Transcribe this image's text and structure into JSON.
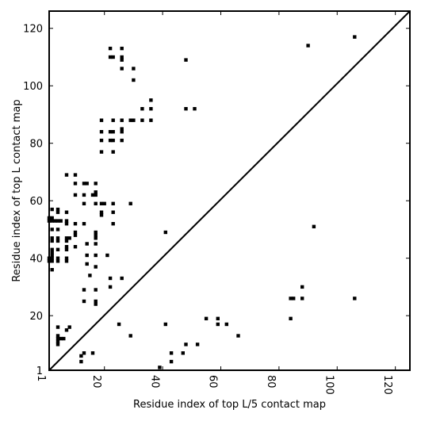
{
  "chart_data": {
    "type": "scatter",
    "title": "",
    "xlabel": "Residue index of top L/5 contact map",
    "ylabel": "Residue index of top L contact map",
    "xlim": [
      1,
      125
    ],
    "ylim": [
      1,
      126
    ],
    "xticks": [
      1,
      20,
      40,
      60,
      80,
      100,
      120
    ],
    "xtick_labels": [
      "1",
      "20",
      "40",
      "60",
      "80",
      "100",
      "120"
    ],
    "yticks": [
      1,
      20,
      40,
      60,
      80,
      100,
      120
    ],
    "ytick_labels": [
      "1",
      "20",
      "40",
      "60",
      "80",
      "100",
      "120"
    ],
    "grid": false,
    "diagonal_line": true,
    "upper_triangle_points": [
      [
        22,
        113
      ],
      [
        26,
        113
      ],
      [
        22,
        110
      ],
      [
        23,
        110
      ],
      [
        26,
        110
      ],
      [
        26,
        109
      ],
      [
        48,
        109
      ],
      [
        26,
        106
      ],
      [
        30,
        106
      ],
      [
        30,
        102
      ],
      [
        36,
        95
      ],
      [
        33,
        92
      ],
      [
        36,
        92
      ],
      [
        48,
        92
      ],
      [
        51,
        92
      ],
      [
        19,
        88
      ],
      [
        23,
        88
      ],
      [
        26,
        88
      ],
      [
        29,
        88
      ],
      [
        30,
        88
      ],
      [
        33,
        88
      ],
      [
        36,
        88
      ],
      [
        19,
        84
      ],
      [
        22,
        84
      ],
      [
        23,
        84
      ],
      [
        26,
        85
      ],
      [
        26,
        84
      ],
      [
        19,
        81
      ],
      [
        22,
        81
      ],
      [
        23,
        81
      ],
      [
        26,
        81
      ],
      [
        19,
        77
      ],
      [
        23,
        77
      ],
      [
        7,
        69
      ],
      [
        10,
        69
      ],
      [
        10,
        66
      ],
      [
        13,
        66
      ],
      [
        14,
        66
      ],
      [
        17,
        66
      ],
      [
        10,
        62
      ],
      [
        13,
        62
      ],
      [
        16,
        62
      ],
      [
        17,
        62
      ],
      [
        17,
        63
      ],
      [
        13,
        59
      ],
      [
        17,
        59
      ],
      [
        19,
        59
      ],
      [
        20,
        59
      ],
      [
        23,
        59
      ],
      [
        29,
        59
      ],
      [
        2,
        57
      ],
      [
        4,
        57
      ],
      [
        4,
        56
      ],
      [
        7,
        56
      ],
      [
        19,
        56
      ],
      [
        23,
        56
      ],
      [
        19,
        55
      ],
      [
        1,
        54
      ],
      [
        2,
        54
      ],
      [
        1,
        53
      ],
      [
        2,
        53
      ],
      [
        3,
        53
      ],
      [
        4,
        53
      ],
      [
        5,
        53
      ],
      [
        7,
        53
      ],
      [
        10,
        52
      ],
      [
        13,
        52
      ],
      [
        7,
        52
      ],
      [
        23,
        52
      ],
      [
        2,
        50
      ],
      [
        4,
        50
      ],
      [
        10,
        49
      ],
      [
        17,
        49
      ],
      [
        10,
        48
      ],
      [
        17,
        48
      ],
      [
        17,
        47
      ],
      [
        2,
        47
      ],
      [
        4,
        47
      ],
      [
        7,
        47
      ],
      [
        8,
        47
      ],
      [
        7,
        46
      ],
      [
        2,
        46
      ],
      [
        4,
        46
      ],
      [
        14,
        45
      ],
      [
        17,
        45
      ],
      [
        10,
        44
      ],
      [
        7,
        44
      ],
      [
        7,
        43
      ],
      [
        2,
        43
      ],
      [
        4,
        43
      ],
      [
        2,
        42
      ],
      [
        2,
        41
      ],
      [
        14,
        41
      ],
      [
        17,
        41
      ],
      [
        21,
        41
      ],
      [
        1,
        40
      ],
      [
        2,
        40
      ],
      [
        4,
        40
      ],
      [
        7,
        40
      ],
      [
        1,
        39
      ],
      [
        2,
        39
      ],
      [
        4,
        39
      ],
      [
        7,
        39
      ],
      [
        14,
        38
      ],
      [
        17,
        37
      ],
      [
        2,
        36
      ],
      [
        15,
        34
      ],
      [
        22,
        33
      ],
      [
        26,
        33
      ],
      [
        22,
        30
      ],
      [
        13,
        29
      ],
      [
        17,
        29
      ],
      [
        13,
        25
      ],
      [
        17,
        25
      ],
      [
        17,
        24
      ]
    ],
    "lower_triangle_points": [
      [
        90,
        114
      ],
      [
        106,
        117
      ],
      [
        41,
        49
      ],
      [
        92,
        51
      ],
      [
        88,
        30
      ],
      [
        84,
        26
      ],
      [
        85,
        26
      ],
      [
        88,
        26
      ],
      [
        106,
        26
      ],
      [
        84,
        19
      ],
      [
        55,
        19
      ],
      [
        59,
        19
      ],
      [
        25,
        17
      ],
      [
        41,
        17
      ],
      [
        59,
        17
      ],
      [
        62,
        17
      ],
      [
        4,
        16
      ],
      [
        8,
        16
      ],
      [
        7,
        15
      ],
      [
        4,
        13
      ],
      [
        5,
        12
      ],
      [
        6,
        12
      ],
      [
        29,
        13
      ],
      [
        66,
        13
      ],
      [
        4,
        12
      ],
      [
        4,
        11
      ],
      [
        4,
        10
      ],
      [
        48,
        10
      ],
      [
        52,
        10
      ],
      [
        13,
        7
      ],
      [
        16,
        7
      ],
      [
        43,
        7
      ],
      [
        47,
        7
      ],
      [
        12,
        6
      ],
      [
        12,
        4
      ],
      [
        43,
        4
      ],
      [
        39,
        2
      ]
    ]
  }
}
